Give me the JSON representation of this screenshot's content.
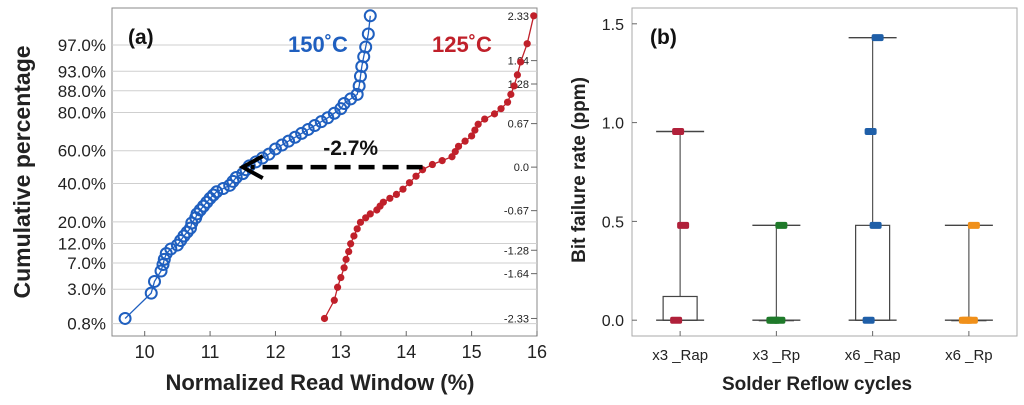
{
  "chart_data": [
    {
      "panel_label": "(a)",
      "type": "scatter",
      "xlabel": "Normalized Read Window (%)",
      "ylabel": "Cumulative percentage",
      "xlim": [
        9.5,
        16
      ],
      "x_ticks": [
        "10",
        "11",
        "12",
        "13",
        "14",
        "15",
        "16"
      ],
      "ylim_z": [
        -2.6,
        2.45
      ],
      "y_ticks": [
        {
          "label": "97.0%",
          "z": 1.88
        },
        {
          "label": "93.0%",
          "z": 1.476
        },
        {
          "label": "88.0%",
          "z": 1.175
        },
        {
          "label": "80.0%",
          "z": 0.842
        },
        {
          "label": "60.0%",
          "z": 0.253
        },
        {
          "label": "40.0%",
          "z": -0.253
        },
        {
          "label": "20.0%",
          "z": -0.842
        },
        {
          "label": "12.0%",
          "z": -1.175
        },
        {
          "label": "7.0%",
          "z": -1.476
        },
        {
          "label": "3.0%",
          "z": -1.88
        },
        {
          "label": "0.8%",
          "z": -2.41
        }
      ],
      "right_ticks": [
        "2.33",
        "1.64",
        "1.28",
        "0.67",
        "0.0",
        "-0.67",
        "-1.28",
        "-1.64",
        "-2.33"
      ],
      "grid": true,
      "annotation": {
        "text": "-2.7%",
        "from_x": 14.25,
        "to_x": 11.5,
        "z": 0.0
      },
      "series": [
        {
          "name": "150˚C",
          "color": "#1f5fbf",
          "marker": "open-circle",
          "points": [
            [
              9.7,
              -2.33
            ],
            [
              10.1,
              -1.94
            ],
            [
              10.15,
              -1.76
            ],
            [
              10.25,
              -1.6
            ],
            [
              10.28,
              -1.5
            ],
            [
              10.3,
              -1.42
            ],
            [
              10.33,
              -1.33
            ],
            [
              10.4,
              -1.26
            ],
            [
              10.5,
              -1.2
            ],
            [
              10.55,
              -1.13
            ],
            [
              10.6,
              -1.06
            ],
            [
              10.65,
              -1.0
            ],
            [
              10.7,
              -0.94
            ],
            [
              10.72,
              -0.86
            ],
            [
              10.78,
              -0.78
            ],
            [
              10.8,
              -0.72
            ],
            [
              10.85,
              -0.66
            ],
            [
              10.9,
              -0.6
            ],
            [
              10.95,
              -0.54
            ],
            [
              11.0,
              -0.48
            ],
            [
              11.05,
              -0.43
            ],
            [
              11.1,
              -0.38
            ],
            [
              11.2,
              -0.33
            ],
            [
              11.3,
              -0.28
            ],
            [
              11.35,
              -0.22
            ],
            [
              11.4,
              -0.16
            ],
            [
              11.5,
              -0.1
            ],
            [
              11.55,
              -0.04
            ],
            [
              11.6,
              0.02
            ],
            [
              11.7,
              0.08
            ],
            [
              11.8,
              0.14
            ],
            [
              11.9,
              0.2
            ],
            [
              12.0,
              0.28
            ],
            [
              12.1,
              0.34
            ],
            [
              12.2,
              0.4
            ],
            [
              12.3,
              0.46
            ],
            [
              12.4,
              0.52
            ],
            [
              12.5,
              0.58
            ],
            [
              12.6,
              0.64
            ],
            [
              12.7,
              0.7
            ],
            [
              12.8,
              0.76
            ],
            [
              12.9,
              0.83
            ],
            [
              13.0,
              0.9
            ],
            [
              13.05,
              0.98
            ],
            [
              13.15,
              1.05
            ],
            [
              13.25,
              1.12
            ],
            [
              13.28,
              1.25
            ],
            [
              13.3,
              1.4
            ],
            [
              13.32,
              1.55
            ],
            [
              13.35,
              1.7
            ],
            [
              13.38,
              1.85
            ],
            [
              13.42,
              2.05
            ],
            [
              13.45,
              2.33
            ]
          ]
        },
        {
          "name": "125˚C",
          "color": "#c0202a",
          "marker": "filled-circle",
          "points": [
            [
              12.75,
              -2.33
            ],
            [
              12.9,
              -2.05
            ],
            [
              12.95,
              -1.85
            ],
            [
              13.0,
              -1.7
            ],
            [
              13.05,
              -1.55
            ],
            [
              13.08,
              -1.42
            ],
            [
              13.12,
              -1.3
            ],
            [
              13.15,
              -1.18
            ],
            [
              13.2,
              -1.06
            ],
            [
              13.25,
              -0.95
            ],
            [
              13.3,
              -0.85
            ],
            [
              13.38,
              -0.78
            ],
            [
              13.45,
              -0.72
            ],
            [
              13.55,
              -0.66
            ],
            [
              13.6,
              -0.6
            ],
            [
              13.65,
              -0.54
            ],
            [
              13.75,
              -0.48
            ],
            [
              13.85,
              -0.42
            ],
            [
              13.95,
              -0.34
            ],
            [
              14.05,
              -0.24
            ],
            [
              14.15,
              -0.14
            ],
            [
              14.25,
              -0.04
            ],
            [
              14.4,
              0.04
            ],
            [
              14.55,
              0.1
            ],
            [
              14.7,
              0.16
            ],
            [
              14.75,
              0.24
            ],
            [
              14.8,
              0.32
            ],
            [
              14.9,
              0.4
            ],
            [
              15.0,
              0.48
            ],
            [
              15.05,
              0.57
            ],
            [
              15.1,
              0.66
            ],
            [
              15.2,
              0.74
            ],
            [
              15.35,
              0.82
            ],
            [
              15.45,
              0.9
            ],
            [
              15.55,
              1.0
            ],
            [
              15.6,
              1.12
            ],
            [
              15.65,
              1.25
            ],
            [
              15.7,
              1.42
            ],
            [
              15.75,
              1.62
            ],
            [
              15.85,
              1.9
            ],
            [
              15.95,
              2.33
            ]
          ]
        }
      ]
    },
    {
      "panel_label": "(b)",
      "type": "box",
      "xlabel": "Solder Reflow cycles",
      "ylabel": "Bit failure rate (ppm)",
      "ylim": [
        -0.08,
        1.58
      ],
      "y_ticks": [
        "0.0",
        "0.5",
        "1.0",
        "1.5"
      ],
      "grid": false,
      "categories": [
        "x3 _Rap",
        "x3 _Rp",
        "x6 _Rap",
        "x6 _Rp"
      ],
      "boxes": [
        {
          "name": "x3 _Rap",
          "color": "#b0203a",
          "min": 0.0,
          "q1": 0.0,
          "median": 0.0,
          "q3": 0.12,
          "max": 0.955,
          "points": [
            0.0,
            0.48,
            0.955
          ]
        },
        {
          "name": "x3 _Rp",
          "color": "#1f7a2a",
          "min": 0.0,
          "q1": 0.0,
          "median": 0.0,
          "q3": 0.0,
          "max": 0.48,
          "points": [
            0.0,
            0.0,
            0.0,
            0.48
          ]
        },
        {
          "name": "x6 _Rap",
          "color": "#1f5fa8",
          "min": 0.0,
          "q1": 0.0,
          "median": 0.0,
          "q3": 0.48,
          "max": 1.43,
          "points": [
            0.0,
            0.48,
            0.955,
            1.43
          ]
        },
        {
          "name": "x6 _Rp",
          "color": "#f0901a",
          "min": 0.0,
          "q1": 0.0,
          "median": 0.0,
          "q3": 0.0,
          "max": 0.48,
          "points": [
            0.0,
            0.0,
            0.0,
            0.48
          ]
        }
      ]
    }
  ]
}
